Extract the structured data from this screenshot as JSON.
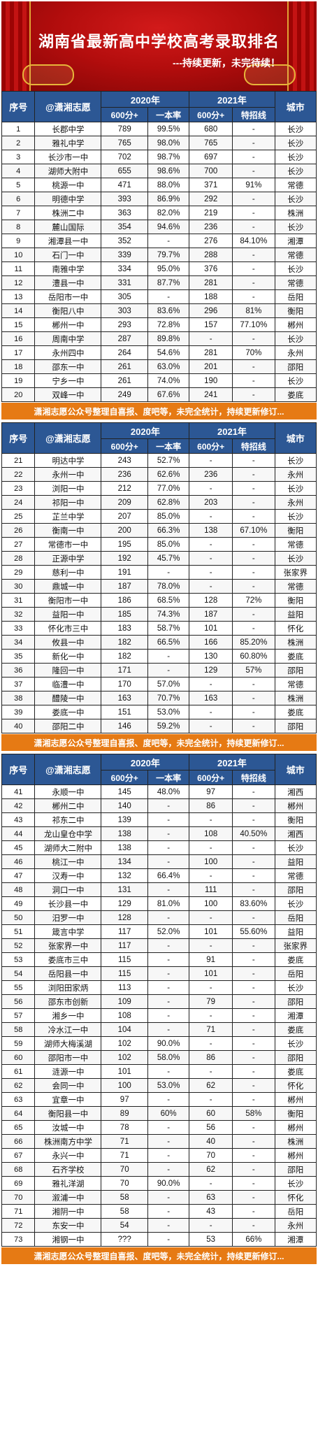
{
  "banner": {
    "title": "湖南省最新高中学校高考录取排名",
    "subtitle": "---持续更新，未完待续！"
  },
  "table_headers": {
    "idx": "序号",
    "school": "@潇湘志愿",
    "year_2020": "2020年",
    "year_2021": "2021年",
    "city": "城市",
    "sub_600": "600分+",
    "sub_rate": "一本率",
    "sub_600b": "600分+",
    "sub_special": "特招线"
  },
  "footer_text": "潇湘志愿公众号整理自喜报、度吧等，未完全统计，持续更新修订...",
  "blocks": [
    {
      "rows": [
        [
          "1",
          "长郡中学",
          "789",
          "99.5%",
          "680",
          "-",
          "长沙"
        ],
        [
          "2",
          "雅礼中学",
          "765",
          "98.0%",
          "765",
          "-",
          "长沙"
        ],
        [
          "3",
          "长沙市一中",
          "702",
          "98.7%",
          "697",
          "-",
          "长沙"
        ],
        [
          "4",
          "湖师大附中",
          "655",
          "98.6%",
          "700",
          "-",
          "长沙"
        ],
        [
          "5",
          "桃源一中",
          "471",
          "88.0%",
          "371",
          "91%",
          "常德"
        ],
        [
          "6",
          "明德中学",
          "393",
          "86.9%",
          "292",
          "-",
          "长沙"
        ],
        [
          "7",
          "株洲二中",
          "363",
          "82.0%",
          "219",
          "-",
          "株洲"
        ],
        [
          "8",
          "麓山国际",
          "354",
          "94.6%",
          "236",
          "-",
          "长沙"
        ],
        [
          "9",
          "湘潭县一中",
          "352",
          "-",
          "276",
          "84.10%",
          "湘潭"
        ],
        [
          "10",
          "石门一中",
          "339",
          "79.7%",
          "288",
          "-",
          "常德"
        ],
        [
          "11",
          "南雅中学",
          "334",
          "95.0%",
          "376",
          "-",
          "长沙"
        ],
        [
          "12",
          "澧县一中",
          "331",
          "87.7%",
          "281",
          "-",
          "常德"
        ],
        [
          "13",
          "岳阳市一中",
          "305",
          "-",
          "188",
          "-",
          "岳阳"
        ],
        [
          "14",
          "衡阳八中",
          "303",
          "83.6%",
          "296",
          "81%",
          "衡阳"
        ],
        [
          "15",
          "郴州一中",
          "293",
          "72.8%",
          "157",
          "77.10%",
          "郴州"
        ],
        [
          "16",
          "周南中学",
          "287",
          "89.8%",
          "-",
          "-",
          "长沙"
        ],
        [
          "17",
          "永州四中",
          "264",
          "54.6%",
          "281",
          "70%",
          "永州"
        ],
        [
          "18",
          "邵东一中",
          "261",
          "63.0%",
          "201",
          "-",
          "邵阳"
        ],
        [
          "19",
          "宁乡一中",
          "261",
          "74.0%",
          "190",
          "-",
          "长沙"
        ],
        [
          "20",
          "双峰一中",
          "249",
          "67.6%",
          "241",
          "-",
          "娄底"
        ]
      ]
    },
    {
      "rows": [
        [
          "21",
          "明达中学",
          "243",
          "52.7%",
          "-",
          "-",
          "长沙"
        ],
        [
          "22",
          "永州一中",
          "236",
          "62.6%",
          "236",
          "-",
          "永州"
        ],
        [
          "23",
          "浏阳一中",
          "212",
          "77.0%",
          "-",
          "-",
          "长沙"
        ],
        [
          "24",
          "祁阳一中",
          "209",
          "62.8%",
          "203",
          "-",
          "永州"
        ],
        [
          "25",
          "芷兰中学",
          "207",
          "85.0%",
          "-",
          "-",
          "长沙"
        ],
        [
          "26",
          "衡南一中",
          "200",
          "66.3%",
          "138",
          "67.10%",
          "衡阳"
        ],
        [
          "27",
          "常德市一中",
          "195",
          "85.0%",
          "-",
          "-",
          "常德"
        ],
        [
          "28",
          "正源中学",
          "192",
          "45.7%",
          "-",
          "-",
          "长沙"
        ],
        [
          "29",
          "慈利一中",
          "191",
          "-",
          "-",
          "-",
          "张家界"
        ],
        [
          "30",
          "鼎城一中",
          "187",
          "78.0%",
          "-",
          "-",
          "常德"
        ],
        [
          "31",
          "衡阳市一中",
          "186",
          "68.5%",
          "128",
          "72%",
          "衡阳"
        ],
        [
          "32",
          "益阳一中",
          "185",
          "74.3%",
          "187",
          "-",
          "益阳"
        ],
        [
          "33",
          "怀化市三中",
          "183",
          "58.7%",
          "101",
          "-",
          "怀化"
        ],
        [
          "34",
          "攸县一中",
          "182",
          "66.5%",
          "166",
          "85.20%",
          "株洲"
        ],
        [
          "35",
          "新化一中",
          "182",
          "-",
          "130",
          "60.80%",
          "娄底"
        ],
        [
          "36",
          "隆回一中",
          "171",
          "-",
          "129",
          "57%",
          "邵阳"
        ],
        [
          "37",
          "临澧一中",
          "170",
          "57.0%",
          "-",
          "-",
          "常德"
        ],
        [
          "38",
          "醴陵一中",
          "163",
          "70.7%",
          "163",
          "-",
          "株洲"
        ],
        [
          "39",
          "娄底一中",
          "151",
          "53.0%",
          "-",
          "-",
          "娄底"
        ],
        [
          "40",
          "邵阳二中",
          "146",
          "59.2%",
          "-",
          "-",
          "邵阳"
        ]
      ]
    },
    {
      "rows": [
        [
          "41",
          "永顺一中",
          "145",
          "48.0%",
          "97",
          "-",
          "湘西"
        ],
        [
          "42",
          "郴州二中",
          "140",
          "-",
          "86",
          "-",
          "郴州"
        ],
        [
          "43",
          "祁东二中",
          "139",
          "-",
          "-",
          "-",
          "衡阳"
        ],
        [
          "44",
          "龙山皇仓中学",
          "138",
          "-",
          "108",
          "40.50%",
          "湘西"
        ],
        [
          "45",
          "湖师大二附中",
          "138",
          "-",
          "-",
          "-",
          "长沙"
        ],
        [
          "46",
          "桃江一中",
          "134",
          "-",
          "100",
          "-",
          "益阳"
        ],
        [
          "47",
          "汉寿一中",
          "132",
          "66.4%",
          "-",
          "-",
          "常德"
        ],
        [
          "48",
          "洞口一中",
          "131",
          "-",
          "111",
          "-",
          "邵阳"
        ],
        [
          "49",
          "长沙县一中",
          "129",
          "81.0%",
          "100",
          "83.60%",
          "长沙"
        ],
        [
          "50",
          "汨罗一中",
          "128",
          "-",
          "-",
          "-",
          "岳阳"
        ],
        [
          "51",
          "箴言中学",
          "117",
          "52.0%",
          "101",
          "55.60%",
          "益阳"
        ],
        [
          "52",
          "张家界一中",
          "117",
          "-",
          "-",
          "-",
          "张家界"
        ],
        [
          "53",
          "娄底市三中",
          "115",
          "-",
          "91",
          "-",
          "娄底"
        ],
        [
          "54",
          "岳阳县一中",
          "115",
          "-",
          "101",
          "-",
          "岳阳"
        ],
        [
          "55",
          "浏阳田家炳",
          "113",
          "-",
          "-",
          "-",
          "长沙"
        ],
        [
          "56",
          "邵东市创新",
          "109",
          "-",
          "79",
          "-",
          "邵阳"
        ],
        [
          "57",
          "湘乡一中",
          "108",
          "-",
          "-",
          "-",
          "湘潭"
        ],
        [
          "58",
          "冷水江一中",
          "104",
          "-",
          "71",
          "-",
          "娄底"
        ],
        [
          "59",
          "湖师大梅溪湖",
          "102",
          "90.0%",
          "-",
          "-",
          "长沙"
        ],
        [
          "60",
          "邵阳市一中",
          "102",
          "58.0%",
          "86",
          "-",
          "邵阳"
        ],
        [
          "61",
          "涟源一中",
          "101",
          "-",
          "-",
          "-",
          "娄底"
        ],
        [
          "62",
          "会同一中",
          "100",
          "53.0%",
          "62",
          "-",
          "怀化"
        ],
        [
          "63",
          "宜章一中",
          "97",
          "-",
          "-",
          "-",
          "郴州"
        ],
        [
          "64",
          "衡阳县一中",
          "89",
          "60%",
          "60",
          "58%",
          "衡阳"
        ],
        [
          "65",
          "汝城一中",
          "78",
          "-",
          "56",
          "-",
          "郴州"
        ],
        [
          "66",
          "株洲南方中学",
          "71",
          "-",
          "40",
          "-",
          "株洲"
        ],
        [
          "67",
          "永兴一中",
          "71",
          "-",
          "70",
          "-",
          "郴州"
        ],
        [
          "68",
          "石齐学校",
          "70",
          "-",
          "62",
          "-",
          "邵阳"
        ],
        [
          "69",
          "雅礼洋湖",
          "70",
          "90.0%",
          "-",
          "-",
          "长沙"
        ],
        [
          "70",
          "溆浦一中",
          "58",
          "-",
          "63",
          "-",
          "怀化"
        ],
        [
          "71",
          "湘阴一中",
          "58",
          "-",
          "43",
          "-",
          "岳阳"
        ],
        [
          "72",
          "东安一中",
          "54",
          "-",
          "-",
          "-",
          "永州"
        ],
        [
          "73",
          "湘钢一中",
          "???",
          "-",
          "53",
          "66%",
          "湘潭"
        ]
      ]
    }
  ]
}
